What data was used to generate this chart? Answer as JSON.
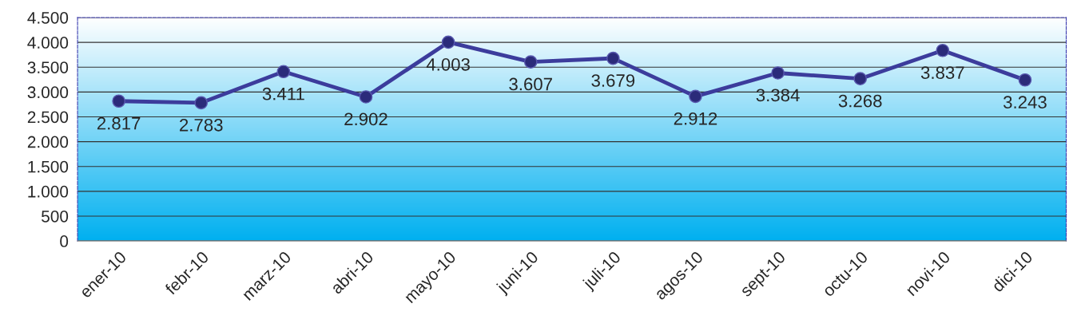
{
  "chart_data": {
    "type": "line",
    "categories": [
      "ener-10",
      "febr-10",
      "marz-10",
      "abri-10",
      "mayo-10",
      "juni-10",
      "juli-10",
      "agos-10",
      "sept-10",
      "octu-10",
      "novi-10",
      "dici-10"
    ],
    "series": [
      {
        "color": "#3c3c9c",
        "values": [
          2817,
          2783,
          3411,
          2902,
          4003,
          3607,
          3679,
          2912,
          3384,
          3268,
          3837,
          3243
        ],
        "value_labels": [
          "2.817",
          "2.783",
          "3.411",
          "2.902",
          "4.003",
          "3.607",
          "3.679",
          "2.912",
          "3.384",
          "3.268",
          "3.837",
          "3.243"
        ]
      }
    ],
    "ylim": [
      0,
      4500
    ],
    "yticks": [
      0,
      500,
      {
        "value": 1000,
        "label": "1.000"
      },
      {
        "value": 1500,
        "label": "1.500"
      },
      {
        "value": 2000,
        "label": "2.000"
      },
      {
        "value": 2500,
        "label": "2.500"
      },
      {
        "value": 3000,
        "label": "3.000"
      },
      {
        "value": 3500,
        "label": "3.500"
      },
      {
        "value": 4000,
        "label": "4.000"
      },
      {
        "value": 4500,
        "label": "4.500"
      }
    ],
    "grid": "y",
    "marker": "circle",
    "line_style": "solid"
  }
}
